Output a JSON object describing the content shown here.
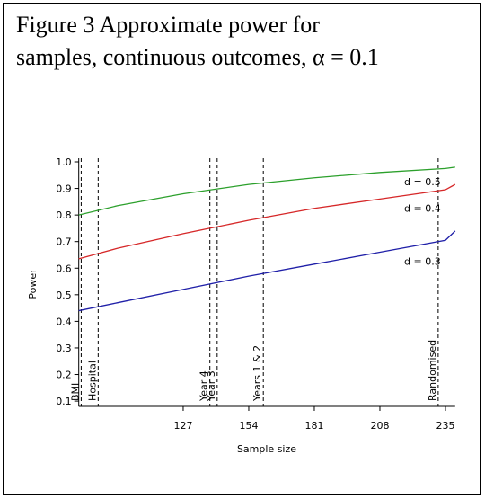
{
  "chart_data": {
    "type": "line",
    "title": [
      "Figure 3 Approximate power for",
      "samples, continuous outcomes, α = 0.1"
    ],
    "x_label": "Sample size",
    "y_label": "Power",
    "x": [
      84,
      100,
      127,
      154,
      181,
      208,
      235,
      239
    ],
    "series": [
      {
        "name": "d = 0.5",
        "color": "#2ca02c",
        "values": [
          0.8,
          0.835,
          0.88,
          0.915,
          0.94,
          0.96,
          0.975,
          0.98
        ]
      },
      {
        "name": "d = 0.4",
        "color": "#d62728",
        "values": [
          0.635,
          0.675,
          0.73,
          0.78,
          0.825,
          0.86,
          0.895,
          0.915
        ]
      },
      {
        "name": "d = 0.3",
        "color": "#1f1fa8",
        "values": [
          0.44,
          0.47,
          0.52,
          0.57,
          0.615,
          0.66,
          0.705,
          0.74
        ]
      }
    ],
    "markers": [
      {
        "label": "BMI",
        "x": 85
      },
      {
        "label": "Hospital",
        "x": 92
      },
      {
        "label": "Year 4",
        "x": 138
      },
      {
        "label": "Year 3",
        "x": 141
      },
      {
        "label": "Years 1 & 2",
        "x": 160
      },
      {
        "label": "Randomised",
        "x": 232
      }
    ],
    "xlim": [
      84,
      239
    ],
    "xticks": [
      127,
      154,
      181,
      208,
      235
    ],
    "ylim": [
      0.08,
      1.0
    ],
    "yticks": [
      0.1,
      0.2,
      0.3,
      0.4,
      0.5,
      0.6,
      0.7,
      0.8,
      0.9,
      {
        "value": 1,
        "label": "1.0"
      }
    ]
  }
}
